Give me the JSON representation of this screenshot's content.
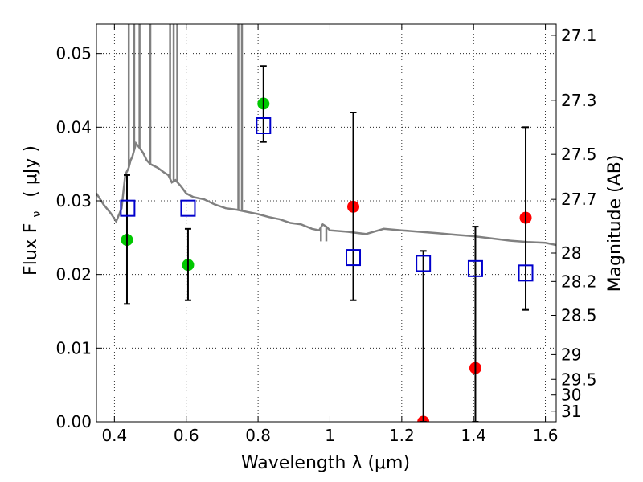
{
  "chart_data": {
    "type": "scatter",
    "xlabel": "Wavelength  λ (μm)",
    "ylabel": "Flux  F",
    "ylabel_sub": "ν",
    "ylabel_unit": "( μJy )",
    "ylabel_right": "Magnitude (AB)",
    "xlim": [
      0.35,
      1.63
    ],
    "ylim": [
      0.0,
      0.054
    ],
    "grid": true,
    "x_ticks": [
      {
        "v": 0.4,
        "label": "0.4"
      },
      {
        "v": 0.6,
        "label": "0.6"
      },
      {
        "v": 0.8,
        "label": "0.8"
      },
      {
        "v": 1.0,
        "label": "1"
      },
      {
        "v": 1.2,
        "label": "1.2"
      },
      {
        "v": 1.4,
        "label": "1.4"
      },
      {
        "v": 1.6,
        "label": "1.6"
      }
    ],
    "y_ticks": [
      {
        "v": 0.0,
        "label": "0.00"
      },
      {
        "v": 0.01,
        "label": "0.01"
      },
      {
        "v": 0.02,
        "label": "0.02"
      },
      {
        "v": 0.03,
        "label": "0.03"
      },
      {
        "v": 0.04,
        "label": "0.04"
      },
      {
        "v": 0.05,
        "label": "0.05"
      }
    ],
    "y_right_ticks": [
      {
        "v": 27.1,
        "label": "27.1"
      },
      {
        "v": 27.3,
        "label": "27.3"
      },
      {
        "v": 27.5,
        "label": "27.5"
      },
      {
        "v": 27.7,
        "label": "27.7"
      },
      {
        "v": 28.0,
        "label": "28"
      },
      {
        "v": 28.2,
        "label": "28.2"
      },
      {
        "v": 28.5,
        "label": "28.5"
      },
      {
        "v": 29.0,
        "label": "29"
      },
      {
        "v": 29.5,
        "label": "29.5"
      },
      {
        "v": 30.0,
        "label": "30"
      },
      {
        "v": 31.0,
        "label": "31"
      }
    ],
    "series": [
      {
        "kind": "line",
        "color": "#808080",
        "points": [
          [
            0.35,
            0.031
          ],
          [
            0.37,
            0.0295
          ],
          [
            0.39,
            0.0283
          ],
          [
            0.405,
            0.0272
          ],
          [
            0.42,
            0.029
          ],
          [
            0.43,
            0.0335
          ],
          [
            0.44,
            0.0345
          ],
          [
            0.445,
            0.0355
          ],
          [
            0.45,
            0.036
          ],
          [
            0.46,
            0.0378
          ],
          [
            0.47,
            0.0372
          ],
          [
            0.48,
            0.0365
          ],
          [
            0.49,
            0.0355
          ],
          [
            0.5,
            0.035
          ],
          [
            0.52,
            0.0345
          ],
          [
            0.54,
            0.0338
          ],
          [
            0.55,
            0.0335
          ],
          [
            0.56,
            0.0325
          ],
          [
            0.57,
            0.0328
          ],
          [
            0.585,
            0.032
          ],
          [
            0.6,
            0.031
          ],
          [
            0.62,
            0.0305
          ],
          [
            0.65,
            0.0302
          ],
          [
            0.68,
            0.0295
          ],
          [
            0.71,
            0.029
          ],
          [
            0.74,
            0.0288
          ],
          [
            0.77,
            0.0285
          ],
          [
            0.8,
            0.0282
          ],
          [
            0.83,
            0.0278
          ],
          [
            0.86,
            0.0275
          ],
          [
            0.89,
            0.027
          ],
          [
            0.92,
            0.0268
          ],
          [
            0.95,
            0.0262
          ],
          [
            0.97,
            0.026
          ],
          [
            0.98,
            0.0268
          ],
          [
            0.99,
            0.0265
          ],
          [
            1.0,
            0.026
          ],
          [
            1.05,
            0.0258
          ],
          [
            1.1,
            0.0255
          ],
          [
            1.15,
            0.0262
          ],
          [
            1.2,
            0.026
          ],
          [
            1.25,
            0.0258
          ],
          [
            1.3,
            0.0256
          ],
          [
            1.35,
            0.0254
          ],
          [
            1.4,
            0.0252
          ],
          [
            1.45,
            0.0249
          ],
          [
            1.5,
            0.0246
          ],
          [
            1.55,
            0.0244
          ],
          [
            1.6,
            0.0243
          ],
          [
            1.63,
            0.024
          ]
        ],
        "spikes": [
          [
            0.44,
            0.054
          ],
          [
            0.455,
            0.054
          ],
          [
            0.47,
            0.054
          ],
          [
            0.5,
            0.054
          ],
          [
            0.555,
            0.054
          ],
          [
            0.565,
            0.054
          ],
          [
            0.575,
            0.054
          ],
          [
            0.745,
            0.054
          ],
          [
            0.755,
            0.054
          ],
          [
            0.975,
            0.0245
          ],
          [
            0.99,
            0.0245
          ]
        ]
      },
      {
        "kind": "scatter-circle",
        "color": "#00c800",
        "points": [
          [
            0.435,
            0.0247
          ],
          [
            0.605,
            0.0213
          ],
          [
            0.815,
            0.0432
          ]
        ]
      },
      {
        "kind": "scatter-circle",
        "color": "#ff0000",
        "points": [
          [
            1.065,
            0.0292
          ],
          [
            1.26,
            0.0
          ],
          [
            1.405,
            0.0073
          ],
          [
            1.545,
            0.0277
          ]
        ]
      },
      {
        "kind": "errorbar",
        "color": "#000000",
        "bars": [
          [
            0.435,
            0.016,
            0.0335
          ],
          [
            0.605,
            0.0165,
            0.0262
          ],
          [
            0.815,
            0.038,
            0.0483
          ],
          [
            1.065,
            0.0165,
            0.042
          ],
          [
            1.26,
            0.0,
            0.0232
          ],
          [
            1.405,
            0.0,
            0.0265
          ],
          [
            1.545,
            0.0152,
            0.04
          ]
        ]
      },
      {
        "kind": "scatter-square",
        "color": "#0000cc",
        "points": [
          [
            0.437,
            0.029
          ],
          [
            0.605,
            0.029
          ],
          [
            0.815,
            0.0402
          ],
          [
            1.065,
            0.0223
          ],
          [
            1.26,
            0.0215
          ],
          [
            1.405,
            0.0208
          ],
          [
            1.545,
            0.0202
          ]
        ]
      }
    ]
  }
}
